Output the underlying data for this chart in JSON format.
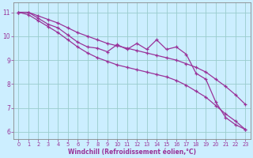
{
  "x": [
    0,
    1,
    2,
    3,
    4,
    5,
    6,
    7,
    8,
    9,
    10,
    11,
    12,
    13,
    14,
    15,
    16,
    17,
    18,
    19,
    20,
    21,
    22,
    23
  ],
  "line_main": [
    11.0,
    11.0,
    10.75,
    10.5,
    10.35,
    10.05,
    9.75,
    9.55,
    9.5,
    9.35,
    9.65,
    9.45,
    9.7,
    9.45,
    9.85,
    9.45,
    9.55,
    9.25,
    8.45,
    8.2,
    7.25,
    6.6,
    6.3,
    6.1
  ],
  "line_upper": [
    11.0,
    11.0,
    10.85,
    10.7,
    10.55,
    10.35,
    10.15,
    10.0,
    9.85,
    9.7,
    9.6,
    9.5,
    9.4,
    9.3,
    9.2,
    9.1,
    9.0,
    8.85,
    8.7,
    8.5,
    8.2,
    7.9,
    7.55,
    7.15
  ],
  "line_lower": [
    11.0,
    10.9,
    10.65,
    10.4,
    10.15,
    9.85,
    9.55,
    9.3,
    9.1,
    8.95,
    8.8,
    8.7,
    8.6,
    8.5,
    8.4,
    8.3,
    8.15,
    7.95,
    7.7,
    7.45,
    7.1,
    6.75,
    6.45,
    6.1
  ],
  "color": "#993399",
  "bg_color": "#cceeff",
  "grid_color": "#99cccc",
  "xlabel": "Windchill (Refroidissement éolien,°C)",
  "ylim": [
    5.7,
    11.4
  ],
  "xlim": [
    -0.5,
    23.5
  ],
  "yticks": [
    6,
    7,
    8,
    9,
    10,
    11
  ],
  "xticks": [
    0,
    1,
    2,
    3,
    4,
    5,
    6,
    7,
    8,
    9,
    10,
    11,
    12,
    13,
    14,
    15,
    16,
    17,
    18,
    19,
    20,
    21,
    22,
    23
  ]
}
